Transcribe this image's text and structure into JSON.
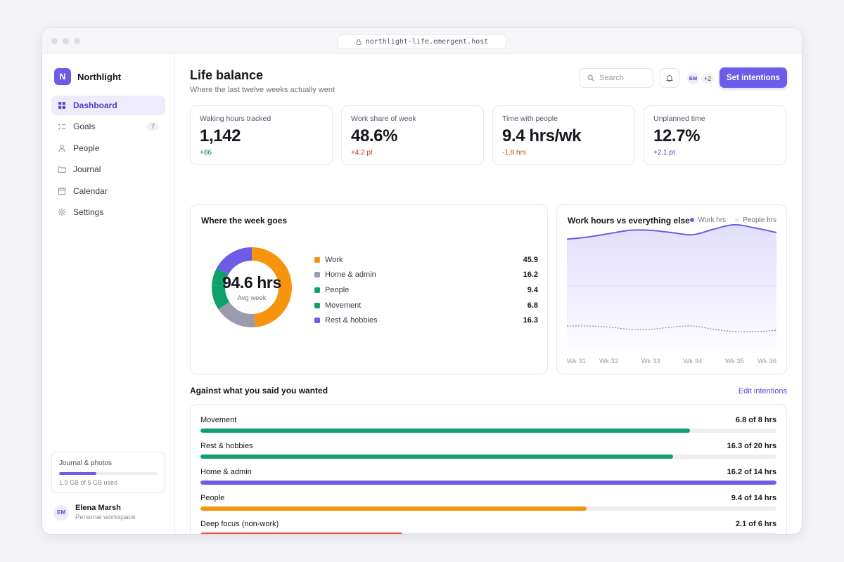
{
  "browser": {
    "url": "northlight-life.emergent.host"
  },
  "sidebar": {
    "brand": {
      "initial": "N",
      "name": "Northlight"
    },
    "items": [
      {
        "label": "Dashboard",
        "icon": "grid-icon",
        "active": true
      },
      {
        "label": "Goals",
        "icon": "checklist-icon",
        "badge": "7"
      },
      {
        "label": "People",
        "icon": "person-icon"
      },
      {
        "label": "Journal",
        "icon": "folder-icon"
      },
      {
        "label": "Calendar",
        "icon": "calendar-icon"
      },
      {
        "label": "Settings",
        "icon": "gear-icon"
      }
    ],
    "storage": {
      "title": "Journal & photos",
      "used_fraction": 0.38,
      "text": "1.9 GB of 5 GB used"
    },
    "user": {
      "initials": "EM",
      "name": "Elena Marsh",
      "subtitle": "Personal workspace"
    }
  },
  "header": {
    "title": "Life balance",
    "subtitle": "Where the last twelve weeks actually went",
    "search_placeholder": "Search",
    "collaborator_initials": "EM",
    "collaborator_more": "+2",
    "cta_label": "Set intentions"
  },
  "kpis": [
    {
      "label": "Waking hours tracked",
      "value": "1,142",
      "delta": "+86",
      "delta_color": "#0e7a55"
    },
    {
      "label": "Work share of week",
      "value": "48.6%",
      "delta": "+4.2 pt",
      "delta_color": "#c4321c"
    },
    {
      "label": "Time with people",
      "value": "9.4 hrs/wk",
      "delta": "-1.8 hrs",
      "delta_color": "#b45309"
    },
    {
      "label": "Unplanned time",
      "value": "12.7%",
      "delta": "+2.1 pt",
      "delta_color": "#4c3fc4"
    }
  ],
  "week_panel": {
    "title": "Where the week goes",
    "center_value": "94.6 hrs",
    "center_label": "Avg week"
  },
  "trend_panel": {
    "title": "Work hours vs everything else",
    "legend": [
      {
        "label": "Work hrs",
        "color": "#6d5ce7"
      },
      {
        "label": "People hrs",
        "color": "#e6e6ec"
      }
    ]
  },
  "goals_section": {
    "title": "Against what you said you wanted",
    "link": "Edit intentions",
    "goals": [
      {
        "label": "Movement",
        "value": "6.8 of 8 hrs",
        "fraction": 0.85,
        "color": "#10a06c"
      },
      {
        "label": "Rest & hobbies",
        "value": "16.3 of 20 hrs",
        "fraction": 0.82,
        "color": "#10a06c"
      },
      {
        "label": "Home & admin",
        "value": "16.2 of 14 hrs",
        "fraction": 1.0,
        "color": "#6d5ce7"
      },
      {
        "label": "People",
        "value": "9.4 of 14 hrs",
        "fraction": 0.67,
        "color": "#f7940d"
      },
      {
        "label": "Deep focus (non-work)",
        "value": "2.1 of 6 hrs",
        "fraction": 0.35,
        "color": "#f4533c"
      }
    ]
  },
  "chart_data": [
    {
      "type": "pie",
      "title": "Where the week goes",
      "categories": [
        "Work",
        "Home & admin",
        "People",
        "Movement",
        "Rest & hobbies"
      ],
      "values": [
        45.9,
        16.2,
        9.4,
        6.8,
        16.3
      ],
      "colors": [
        "#f7940d",
        "#9b9bab",
        "#10a06c",
        "#10a06c",
        "#6d5ce7"
      ]
    },
    {
      "type": "area",
      "title": "Work hours vs everything else",
      "x": [
        "Wk 31",
        "Wk 32",
        "Wk 33",
        "Wk 34",
        "Wk 35",
        "Wk 36"
      ],
      "x_points": [
        31,
        32,
        33,
        34,
        35,
        36
      ],
      "ylim": [
        0,
        60
      ],
      "series": [
        {
          "name": "Work hrs",
          "x": [
            31,
            31.5,
            32,
            32.5,
            33,
            33.5,
            34,
            34.5,
            35,
            35.5,
            36
          ],
          "values": [
            51,
            52,
            53.5,
            55,
            55,
            54,
            53,
            55.5,
            57.5,
            56,
            54
          ],
          "color": "#6d5ce7"
        },
        {
          "name": "People hrs",
          "x": [
            31,
            31.5,
            32,
            32.5,
            33,
            33.5,
            34,
            34.5,
            35,
            35.5,
            36
          ],
          "values": [
            12,
            12,
            11.5,
            10.5,
            10.5,
            11.5,
            12,
            10.5,
            9.5,
            9.5,
            10
          ],
          "color": "#8a8a9a"
        }
      ]
    }
  ]
}
